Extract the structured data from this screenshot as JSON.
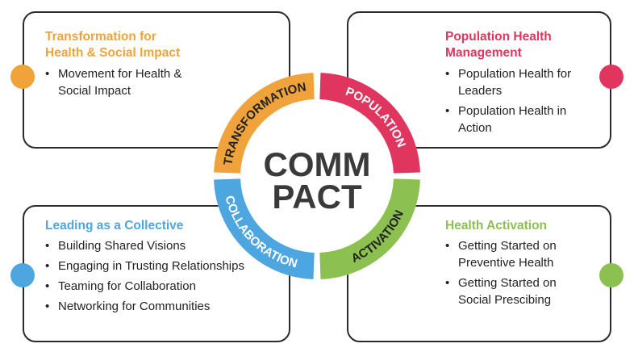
{
  "center": {
    "line1": "COMM",
    "line2": "PACT"
  },
  "segments": [
    {
      "label": "TRANSFORMATION",
      "color": "#F0A33A"
    },
    {
      "label": "POPULATION",
      "color": "#E0355F"
    },
    {
      "label": "ACTIVATION",
      "color": "#8CC152"
    },
    {
      "label": "COLLABORATION",
      "color": "#4DA6DF"
    }
  ],
  "panels": {
    "transformation": {
      "title_line1": "Transformation for",
      "title_line2": "Health & Social Impact",
      "color": "#F0A33A",
      "items": [
        "Movement for Health & Social Impact"
      ]
    },
    "population": {
      "title_line1": "Population Health",
      "title_line2": "Management",
      "color": "#E0355F",
      "items": [
        "Population Health for Leaders",
        "Population Health in Action"
      ]
    },
    "collaboration": {
      "title_line1": "Leading as a Collective",
      "color": "#4DA6DF",
      "items": [
        "Building Shared Visions",
        "Engaging in Trusting Relationships",
        "Teaming for Collaboration",
        "Networking for Communities"
      ]
    },
    "activation": {
      "title_line1": "Health Activation",
      "color": "#8CC152",
      "items": [
        "Getting Started on Preventive Health",
        "Getting Started on Social Prescibing"
      ]
    }
  }
}
